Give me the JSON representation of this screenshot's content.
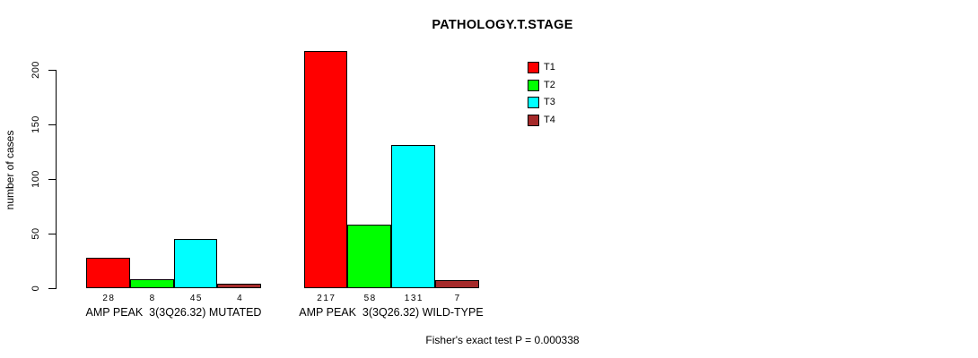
{
  "chart_data": {
    "type": "bar",
    "title": "PATHOLOGY.T.STAGE",
    "ylabel": "number of cases",
    "xlabel": "",
    "ylim": [
      0,
      200
    ],
    "yticks": [
      0,
      50,
      100,
      150,
      200
    ],
    "grid": false,
    "legend_position": "top-right",
    "series_names": [
      "T1",
      "T2",
      "T3",
      "T4"
    ],
    "colors": [
      "#ff0000",
      "#00ff00",
      "#00ffff",
      "#a52a2a"
    ],
    "categories": [
      "AMP PEAK  3(3Q26.32) MUTATED",
      "AMP PEAK  3(3Q26.32) WILD-TYPE"
    ],
    "groups": [
      {
        "label": "AMP PEAK  3(3Q26.32) MUTATED",
        "values": [
          28,
          8,
          45,
          4
        ]
      },
      {
        "label": "AMP PEAK  3(3Q26.32) WILD-TYPE",
        "values": [
          217,
          58,
          131,
          7
        ]
      }
    ],
    "series": [
      {
        "name": "T1",
        "values": [
          28,
          217
        ]
      },
      {
        "name": "T2",
        "values": [
          8,
          58
        ]
      },
      {
        "name": "T3",
        "values": [
          45,
          131
        ]
      },
      {
        "name": "T4",
        "values": [
          4,
          7
        ]
      }
    ],
    "footnote": "Fisher's exact test P = 0.000338"
  }
}
